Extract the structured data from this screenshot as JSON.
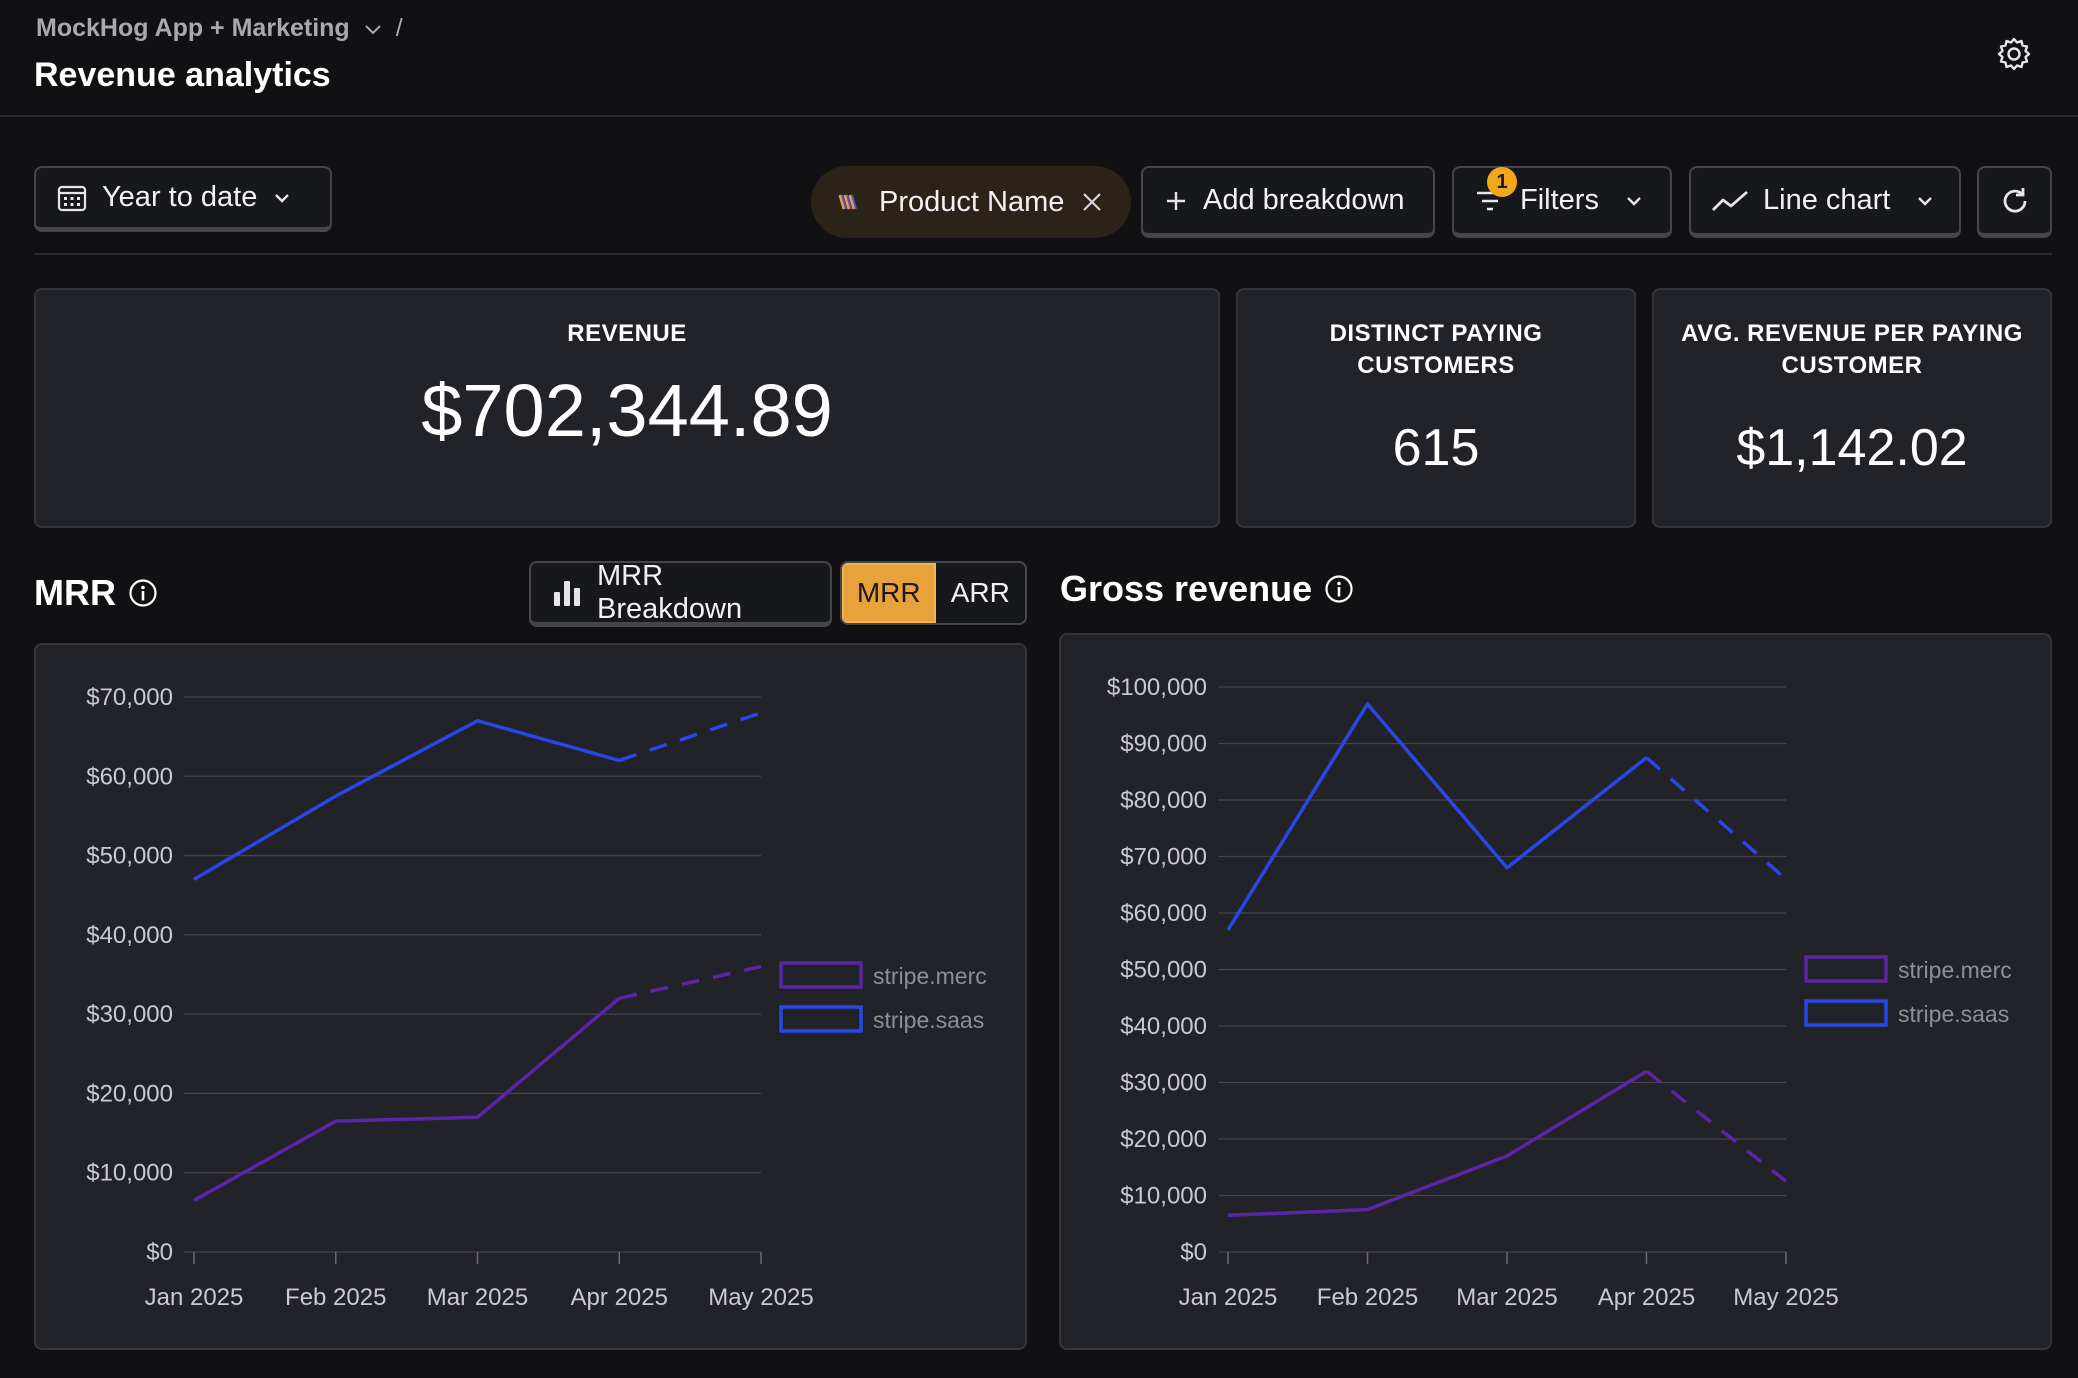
{
  "header": {
    "breadcrumb": "MockHog App + Marketing",
    "breadcrumb_sep": "/",
    "title": "Revenue analytics"
  },
  "toolbar": {
    "date_range": "Year to date",
    "breakdown_pill": "Product Name",
    "add_breakdown": "Add breakdown",
    "filters": "Filters",
    "filters_count": "1",
    "chart_type": "Line chart"
  },
  "kpis": {
    "revenue": {
      "label": "REVENUE",
      "value": "$702,344.89"
    },
    "customers": {
      "label_line1": "DISTINCT PAYING",
      "label_line2": "CUSTOMERS",
      "value": "615"
    },
    "arpu": {
      "label_line1": "AVG. REVENUE PER PAYING",
      "label_line2": "CUSTOMER",
      "value": "$1,142.02"
    }
  },
  "mrr_section": {
    "title": "MRR",
    "breakdown_button": "MRR Breakdown",
    "toggle": [
      "MRR",
      "ARR"
    ],
    "toggle_selected": "MRR"
  },
  "gross_section": {
    "title": "Gross revenue"
  },
  "colors": {
    "stripe_merc": "#5b25a8",
    "stripe_saas": "#2847e6",
    "accent": "#e8a23b"
  },
  "chart_data": [
    {
      "type": "line",
      "x": [
        "Jan 2025",
        "Feb 2025",
        "Mar 2025",
        "Apr 2025",
        "May 2025"
      ],
      "ylim": [
        0,
        70000
      ],
      "yticks": [
        "$0",
        "$10,000",
        "$20,000",
        "$30,000",
        "$40,000",
        "$50,000",
        "$60,000",
        "$70,000"
      ],
      "grid": true,
      "legend": "right",
      "projected_from_index": 3,
      "series": [
        {
          "name": "stripe.merc",
          "values": [
            6500,
            16500,
            17000,
            32000,
            36000
          ]
        },
        {
          "name": "stripe.saas",
          "values": [
            47000,
            57500,
            67000,
            62000,
            68000
          ]
        }
      ]
    },
    {
      "type": "line",
      "x": [
        "Jan 2025",
        "Feb 2025",
        "Mar 2025",
        "Apr 2025",
        "May 2025"
      ],
      "ylim": [
        0,
        100000
      ],
      "yticks": [
        "$0",
        "$10,000",
        "$20,000",
        "$30,000",
        "$40,000",
        "$50,000",
        "$60,000",
        "$70,000",
        "$80,000",
        "$90,000",
        "$100,000"
      ],
      "grid": true,
      "legend": "right",
      "projected_from_index": 3,
      "series": [
        {
          "name": "stripe.merc",
          "values": [
            6500,
            7500,
            17000,
            32000,
            12500
          ]
        },
        {
          "name": "stripe.saas",
          "values": [
            57000,
            97000,
            68000,
            87500,
            66000
          ]
        }
      ]
    }
  ]
}
